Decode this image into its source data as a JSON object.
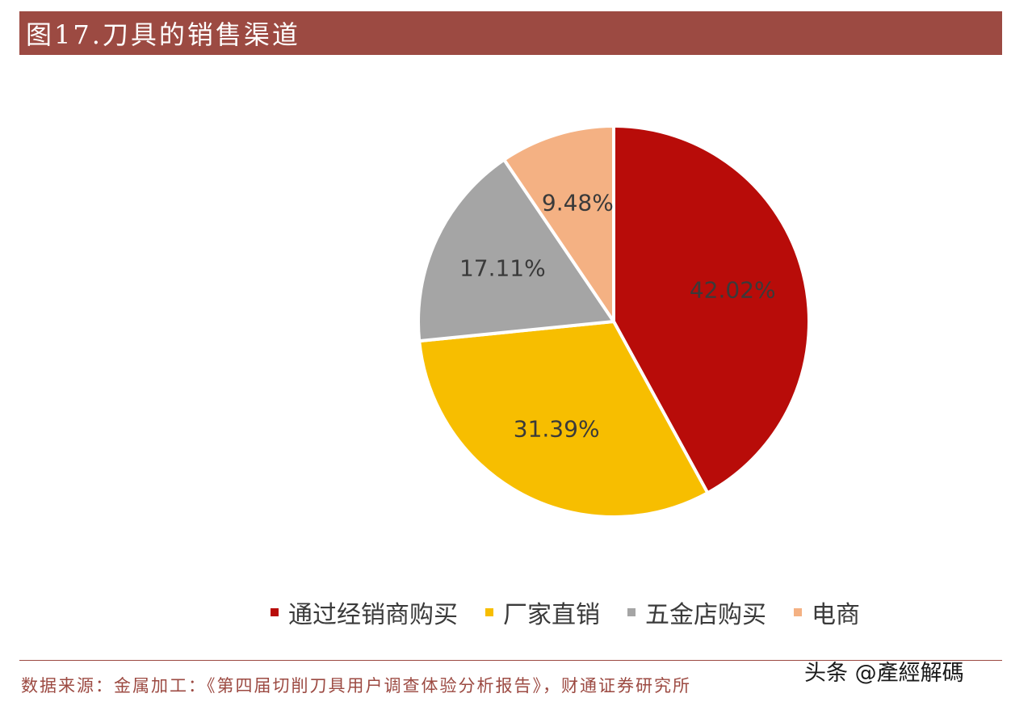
{
  "header": {
    "title": "图17.刀具的销售渠道"
  },
  "chart_data": {
    "type": "pie",
    "categories": [
      "通过经销商购买",
      "厂家直销",
      "五金店购买",
      "电商"
    ],
    "values": [
      42.02,
      31.39,
      17.11,
      9.48
    ],
    "labels": [
      "42.02%",
      "31.39%",
      "17.11%",
      "9.48%"
    ],
    "colors": [
      "#b80c09",
      "#f7be00",
      "#a5a5a5",
      "#f4b183"
    ],
    "legend_position": "bottom"
  },
  "footer": {
    "source": "数据来源：金属加工：《第四届切削刀具用户调查体验分析报告》，财通证券研究所",
    "watermark": "头条 @產經解碼"
  }
}
